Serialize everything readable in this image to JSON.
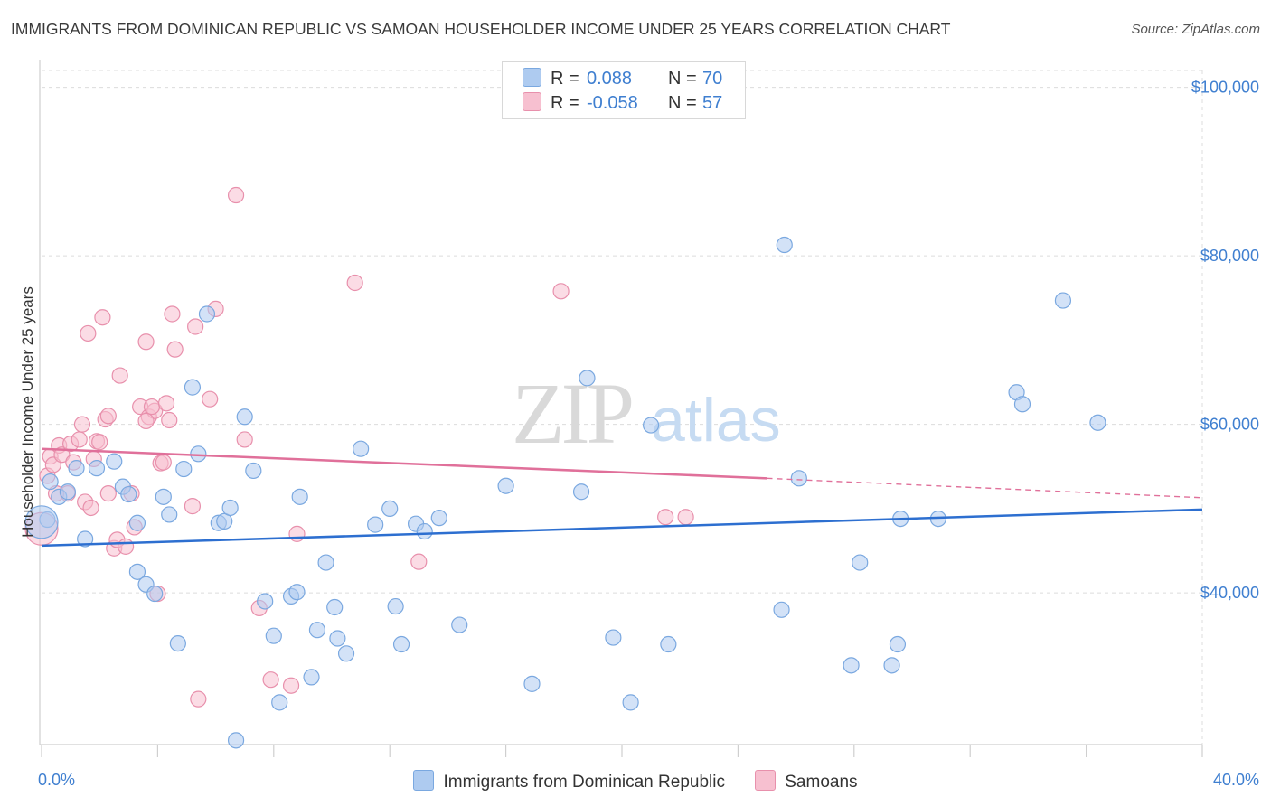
{
  "header": {
    "title": "IMMIGRANTS FROM DOMINICAN REPUBLIC VS SAMOAN HOUSEHOLDER INCOME UNDER 25 YEARS CORRELATION CHART",
    "source": "Source: ZipAtlas.com"
  },
  "watermark": {
    "zip": "ZIP",
    "atlas": "atlas"
  },
  "legend": {
    "rows": [
      {
        "r_label": "R =",
        "r_value": "0.088",
        "n_label": "N =",
        "n_value": "70",
        "color": "#aecbf0",
        "border": "#7aa8e0"
      },
      {
        "r_label": "R =",
        "r_value": "-0.058",
        "n_label": "N =",
        "n_value": "57",
        "color": "#f7c0d0",
        "border": "#e890ac"
      }
    ]
  },
  "bottom_legend": {
    "items": [
      {
        "label": "Immigrants from Dominican Republic",
        "color": "#aecbf0",
        "border": "#7aa8e0"
      },
      {
        "label": "Samoans",
        "color": "#f7c0d0",
        "border": "#e890ac"
      }
    ]
  },
  "chart_data": {
    "type": "scatter",
    "title": "IMMIGRANTS FROM DOMINICAN REPUBLIC VS SAMOAN HOUSEHOLDER INCOME UNDER 25 YEARS CORRELATION CHART",
    "ylabel": "Householder Income Under 25 years",
    "xlabel": "",
    "xlim": [
      0,
      40
    ],
    "ylim": [
      22000,
      102000
    ],
    "x_ticks": [
      {
        "value": 0,
        "label": "0.0%"
      },
      {
        "value": 40,
        "label": "40.0%"
      }
    ],
    "y_ticks": [
      {
        "value": 40000,
        "label": "$40,000"
      },
      {
        "value": 60000,
        "label": "$60,000"
      },
      {
        "value": 80000,
        "label": "$80,000"
      },
      {
        "value": 100000,
        "label": "$100,000"
      }
    ],
    "grid": true,
    "legend_position": "top-center",
    "series": [
      {
        "name": "Immigrants from Dominican Republic",
        "color": "#7aa8e0",
        "fill": "#aecbf0",
        "trend": {
          "x": [
            0,
            40
          ],
          "y": [
            45600,
            49900
          ],
          "color": "#2d6fd0"
        },
        "points": [
          [
            0.2,
            48700
          ],
          [
            0.3,
            53200
          ],
          [
            0.6,
            51400
          ],
          [
            0.9,
            52000
          ],
          [
            1.2,
            54800
          ],
          [
            1.5,
            46400
          ],
          [
            1.9,
            54800
          ],
          [
            2.5,
            55600
          ],
          [
            2.8,
            52600
          ],
          [
            3.0,
            51700
          ],
          [
            3.3,
            42500
          ],
          [
            3.3,
            48300
          ],
          [
            3.6,
            41000
          ],
          [
            3.9,
            39900
          ],
          [
            4.2,
            51400
          ],
          [
            4.4,
            49300
          ],
          [
            4.7,
            34000
          ],
          [
            4.9,
            54700
          ],
          [
            5.2,
            64400
          ],
          [
            5.4,
            56500
          ],
          [
            5.7,
            73100
          ],
          [
            6.1,
            48300
          ],
          [
            6.3,
            48500
          ],
          [
            6.5,
            50100
          ],
          [
            6.7,
            22500
          ],
          [
            7.0,
            60900
          ],
          [
            7.3,
            54500
          ],
          [
            7.7,
            39000
          ],
          [
            8.0,
            34900
          ],
          [
            8.2,
            27000
          ],
          [
            8.6,
            39600
          ],
          [
            8.8,
            40100
          ],
          [
            8.9,
            51400
          ],
          [
            9.3,
            30000
          ],
          [
            9.5,
            35600
          ],
          [
            9.8,
            43600
          ],
          [
            10.1,
            38300
          ],
          [
            10.2,
            34600
          ],
          [
            10.5,
            32800
          ],
          [
            11.0,
            57100
          ],
          [
            11.5,
            48100
          ],
          [
            12.0,
            50000
          ],
          [
            12.2,
            38400
          ],
          [
            12.4,
            33900
          ],
          [
            12.9,
            48200
          ],
          [
            13.2,
            47300
          ],
          [
            13.7,
            48900
          ],
          [
            14.4,
            36200
          ],
          [
            16.0,
            52700
          ],
          [
            16.9,
            29200
          ],
          [
            18.6,
            52000
          ],
          [
            18.8,
            65500
          ],
          [
            19.7,
            34700
          ],
          [
            20.3,
            27000
          ],
          [
            21.0,
            59900
          ],
          [
            21.6,
            33900
          ],
          [
            25.6,
            81300
          ],
          [
            25.5,
            38000
          ],
          [
            26.1,
            53600
          ],
          [
            27.9,
            31400
          ],
          [
            28.2,
            43600
          ],
          [
            29.3,
            31400
          ],
          [
            29.5,
            33900
          ],
          [
            29.6,
            48800
          ],
          [
            30.9,
            48800
          ],
          [
            33.6,
            63800
          ],
          [
            33.8,
            62400
          ],
          [
            35.2,
            74700
          ],
          [
            36.4,
            60200
          ],
          [
            0.0,
            48400
          ]
        ]
      },
      {
        "name": "Samoans",
        "color": "#e890ac",
        "fill": "#f7c0d0",
        "trend": {
          "x": [
            0,
            25
          ],
          "y": [
            57100,
            53600
          ],
          "color": "#e0709a"
        },
        "trend_dashed": {
          "x": [
            25,
            40
          ],
          "y": [
            53600,
            51300
          ]
        },
        "points": [
          [
            0.0,
            47600
          ],
          [
            0.2,
            53900
          ],
          [
            0.3,
            56200
          ],
          [
            0.4,
            55200
          ],
          [
            0.6,
            57500
          ],
          [
            0.7,
            56400
          ],
          [
            0.9,
            51800
          ],
          [
            1.0,
            57700
          ],
          [
            1.1,
            55500
          ],
          [
            1.3,
            58200
          ],
          [
            1.4,
            60000
          ],
          [
            1.5,
            50800
          ],
          [
            1.6,
            70800
          ],
          [
            1.7,
            50100
          ],
          [
            1.9,
            58000
          ],
          [
            2.0,
            57900
          ],
          [
            2.1,
            72700
          ],
          [
            2.2,
            60600
          ],
          [
            2.3,
            61000
          ],
          [
            2.3,
            51800
          ],
          [
            2.5,
            45300
          ],
          [
            2.6,
            46300
          ],
          [
            2.7,
            65800
          ],
          [
            2.9,
            45500
          ],
          [
            3.1,
            51800
          ],
          [
            3.2,
            47800
          ],
          [
            3.4,
            62100
          ],
          [
            3.6,
            69800
          ],
          [
            3.7,
            60900
          ],
          [
            3.9,
            61600
          ],
          [
            3.8,
            62100
          ],
          [
            3.6,
            60400
          ],
          [
            4.0,
            39900
          ],
          [
            4.1,
            55400
          ],
          [
            4.2,
            55500
          ],
          [
            4.3,
            62500
          ],
          [
            4.4,
            60500
          ],
          [
            4.5,
            73100
          ],
          [
            4.6,
            68900
          ],
          [
            5.2,
            50300
          ],
          [
            5.3,
            71600
          ],
          [
            5.4,
            27400
          ],
          [
            5.8,
            63000
          ],
          [
            6.0,
            73700
          ],
          [
            6.7,
            87200
          ],
          [
            7.0,
            58200
          ],
          [
            7.5,
            38200
          ],
          [
            7.9,
            29700
          ],
          [
            8.6,
            29000
          ],
          [
            8.8,
            47000
          ],
          [
            10.8,
            76800
          ],
          [
            13.0,
            43700
          ],
          [
            17.9,
            75800
          ],
          [
            21.5,
            49000
          ],
          [
            22.2,
            49000
          ],
          [
            0.5,
            51800
          ],
          [
            1.8,
            55900
          ]
        ]
      }
    ]
  }
}
